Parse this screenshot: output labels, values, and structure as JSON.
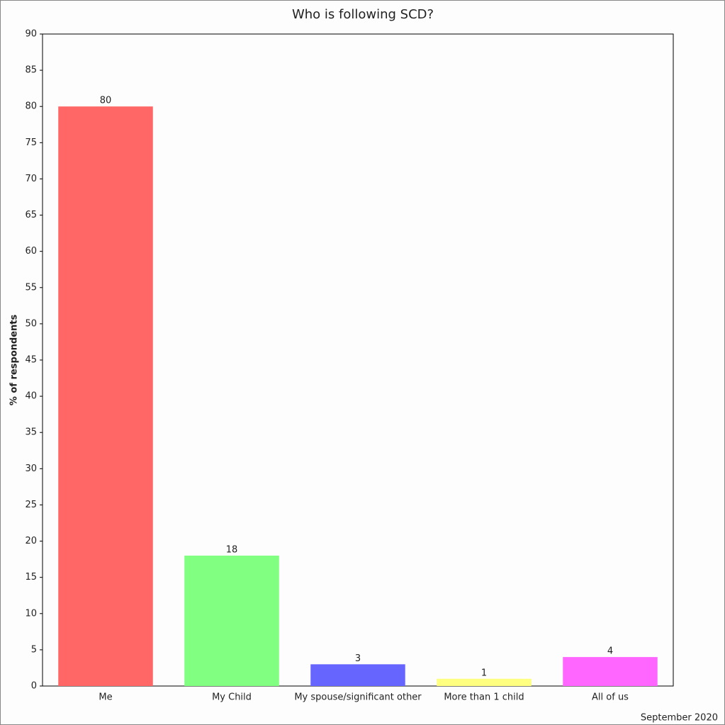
{
  "chart_data": {
    "type": "bar",
    "title": "Who is following SCD?",
    "y_label": "% of respondents",
    "footnote": "September 2020",
    "categories": [
      "Me",
      "My Child",
      "My spouse/significant other",
      "More than 1 child",
      "All of us"
    ],
    "values": [
      80,
      18,
      3,
      1,
      4
    ],
    "colors": [
      "#ff6666",
      "#80ff80",
      "#6666ff",
      "#ffff80",
      "#ff66ff"
    ],
    "ylim": [
      0,
      90
    ],
    "yticks": [
      0,
      5,
      10,
      15,
      20,
      25,
      30,
      35,
      40,
      45,
      50,
      55,
      60,
      65,
      70,
      75,
      80,
      85,
      90
    ],
    "grid": false,
    "data_labels": true
  }
}
